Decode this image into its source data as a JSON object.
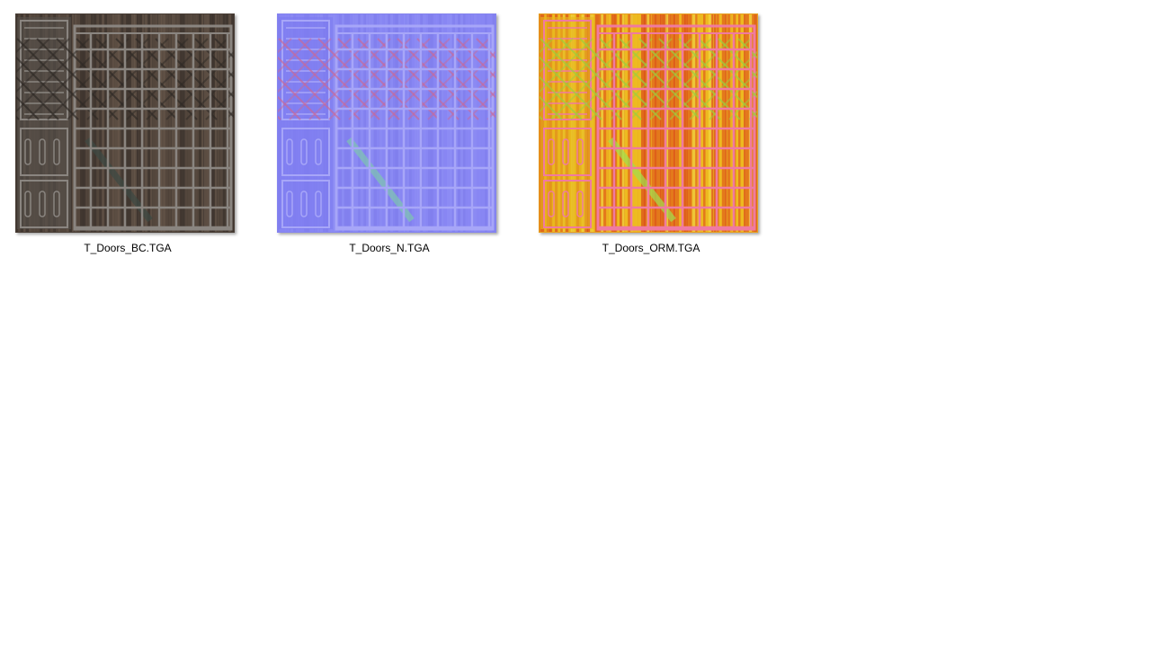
{
  "files": [
    {
      "name": "T_Doors_BC.TGA"
    },
    {
      "name": "T_Doors_N.TGA"
    },
    {
      "name": "T_Doors_ORM.TGA"
    }
  ]
}
